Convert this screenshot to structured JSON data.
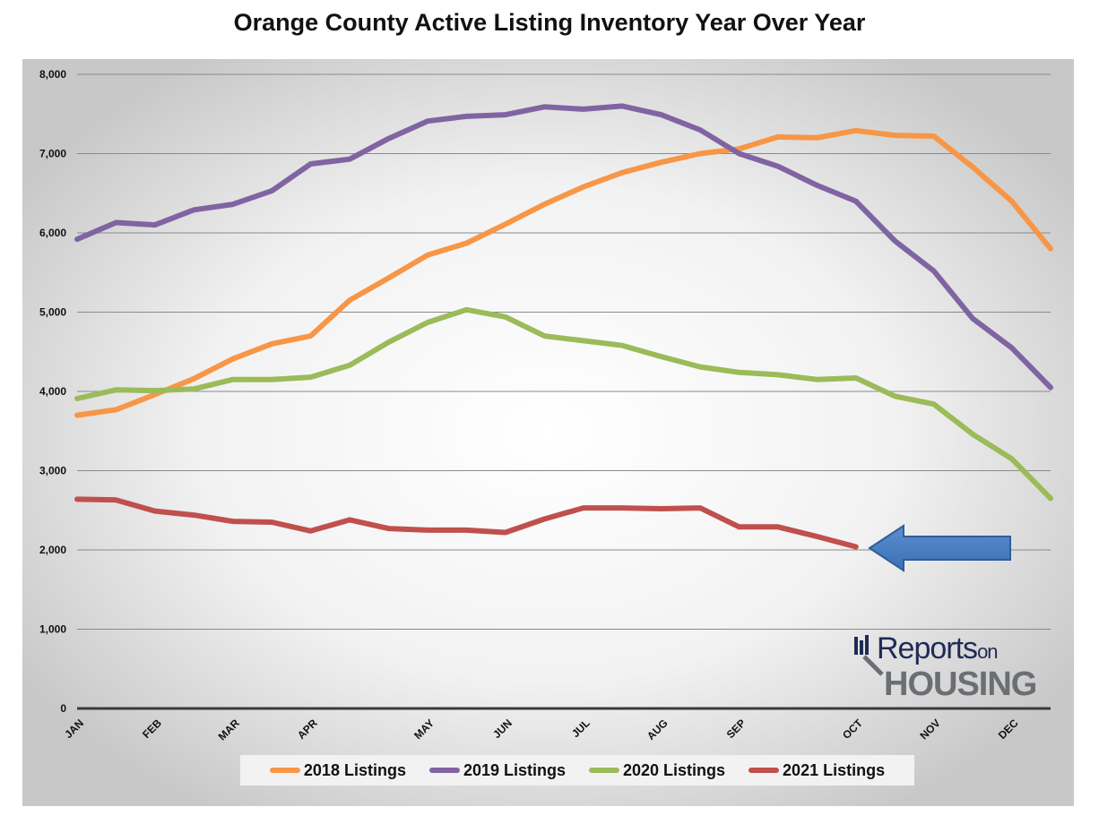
{
  "chart_data": {
    "type": "line",
    "title": "Orange County Active Listing Inventory Year Over Year",
    "xlabel": "",
    "ylabel": "",
    "ylim": [
      0,
      8000
    ],
    "yticks": [
      "0",
      "1,000",
      "2,000",
      "3,000",
      "4,000",
      "5,000",
      "6,000",
      "7,000",
      "8,000"
    ],
    "month_ticks": [
      {
        "label": "JAN",
        "index": 0
      },
      {
        "label": "FEB",
        "index": 2
      },
      {
        "label": "MAR",
        "index": 4
      },
      {
        "label": "APR",
        "index": 6
      },
      {
        "label": "MAY",
        "index": 9
      },
      {
        "label": "JUN",
        "index": 11
      },
      {
        "label": "JUL",
        "index": 13
      },
      {
        "label": "AUG",
        "index": 15
      },
      {
        "label": "SEP",
        "index": 17
      },
      {
        "label": "OCT",
        "index": 20
      },
      {
        "label": "NOV",
        "index": 22
      },
      {
        "label": "DEC",
        "index": 24
      }
    ],
    "grid": true,
    "legend_position": "bottom",
    "series": [
      {
        "name": "2018 Listings",
        "color": "#f79646",
        "values": [
          3700,
          3770,
          3960,
          4160,
          4410,
          4600,
          4700,
          5150,
          5430,
          5720,
          5870,
          6110,
          6360,
          6580,
          6760,
          6890,
          7000,
          7060,
          7210,
          7200,
          7290,
          7230,
          7220,
          6830,
          6400,
          5800
        ]
      },
      {
        "name": "2019 Listings",
        "color": "#8064a2",
        "values": [
          5920,
          6130,
          6100,
          6290,
          6360,
          6530,
          6870,
          6930,
          7190,
          7410,
          7470,
          7490,
          7590,
          7560,
          7600,
          7490,
          7300,
          7000,
          6840,
          6600,
          6400,
          5900,
          5520,
          4920,
          4550,
          4050
        ]
      },
      {
        "name": "2020 Listings",
        "color": "#9bbb59",
        "values": [
          3910,
          4020,
          4010,
          4030,
          4150,
          4150,
          4180,
          4330,
          4620,
          4870,
          5030,
          4940,
          4700,
          4640,
          4580,
          4440,
          4310,
          4240,
          4210,
          4150,
          4170,
          3940,
          3840,
          3460,
          3150,
          2650
        ]
      },
      {
        "name": "2021 Listings",
        "color": "#c0504d",
        "values": [
          2640,
          2630,
          2490,
          2440,
          2360,
          2350,
          2240,
          2380,
          2270,
          2250,
          2250,
          2220,
          2390,
          2530,
          2530,
          2520,
          2530,
          2290,
          2290,
          2170,
          2040
        ]
      }
    ]
  },
  "logo": {
    "reports": "Reports",
    "on": "on",
    "housing": "HOUSING"
  }
}
